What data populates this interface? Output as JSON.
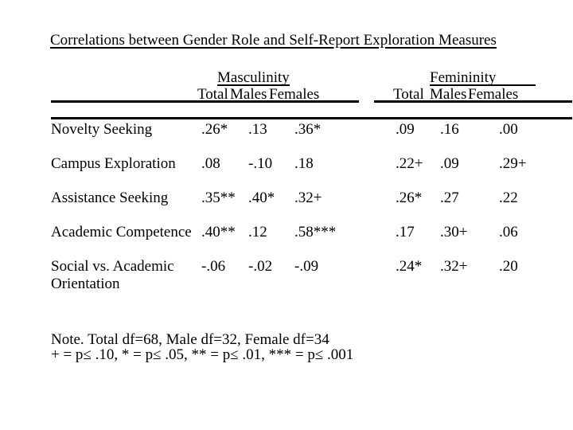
{
  "title": "Correlations between Gender Role and Self-Report Exploration Measures",
  "table": {
    "group_headers": [
      {
        "label": "Masculinity"
      },
      {
        "label": "Femininity"
      }
    ],
    "sub_headers": {
      "masculinity": [
        "Total",
        "Males",
        "Females"
      ],
      "femininity": [
        "Total",
        "Males",
        "Females"
      ]
    },
    "rows": [
      {
        "label": "Novelty Seeking",
        "values": [
          ".26*",
          ".13",
          ".36*",
          ".09",
          ".16",
          ".00"
        ]
      },
      {
        "label": "Campus Exploration",
        "values": [
          ".08",
          "-.10",
          ".18",
          ".22+",
          ".09",
          ".29+"
        ]
      },
      {
        "label": "Assistance Seeking",
        "values": [
          ".35**",
          ".40*",
          ".32+",
          ".26*",
          ".27",
          ".22"
        ]
      },
      {
        "label": "Academic Competence",
        "values": [
          ".40**",
          ".12",
          ".58***",
          ".17",
          ".30+",
          ".06"
        ]
      },
      {
        "label": "Social vs. Academic\nOrientation",
        "values": [
          "-.06",
          "-.02",
          "-.09",
          ".24*",
          ".32+",
          ".20"
        ]
      }
    ]
  },
  "note": {
    "line1": "Note. Total df=68, Male df=32, Female df=34",
    "line2": "+ = p≤ .10, * = p≤ .05, ** = p≤ .01, *** = p≤ .001"
  },
  "colors": {
    "background": "#ffffff",
    "text": "#000000",
    "rule": "#000000"
  }
}
